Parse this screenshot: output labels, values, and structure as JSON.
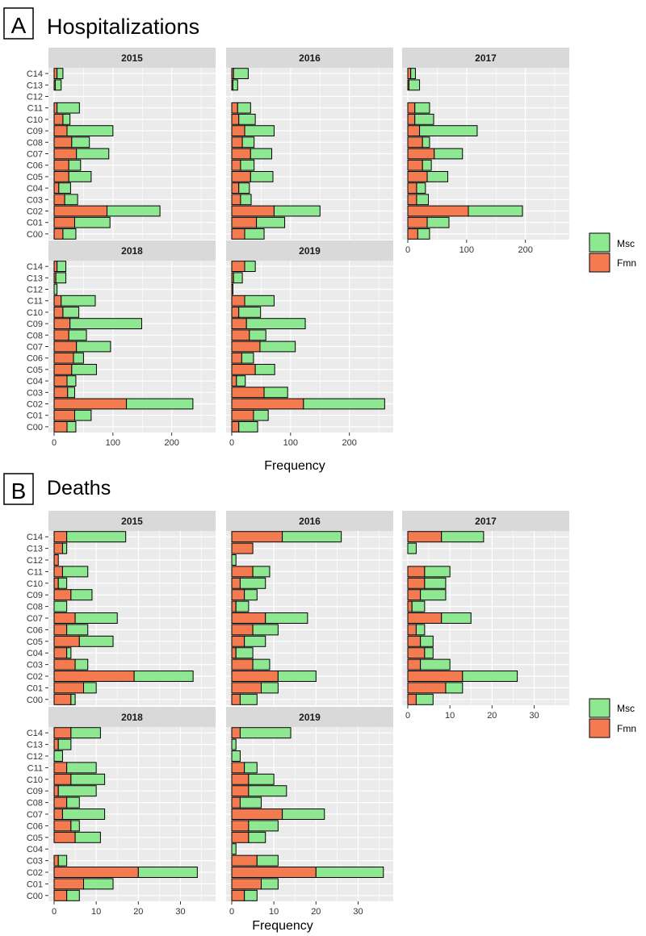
{
  "colors": {
    "fmn": "#F47B50",
    "msc": "#8EE891",
    "panel_bg": "#EBEBEB",
    "strip_bg": "#D9D9D9",
    "grid": "#FFFFFF",
    "outline": "#000000"
  },
  "panels": [
    {
      "letter": "A",
      "title": "Hospitalizations",
      "xlabel": "Frequency",
      "legend": {
        "msc": "Msc",
        "fmn": "Fmn"
      },
      "chart_data": {
        "type": "bar",
        "orientation": "horizontal",
        "stacked": true,
        "categories": [
          "C00",
          "C01",
          "C02",
          "C03",
          "C04",
          "C05",
          "C06",
          "C07",
          "C08",
          "C09",
          "C10",
          "C11",
          "C12",
          "C13",
          "C14"
        ],
        "xlim": [
          0,
          265
        ],
        "xticks": [
          0,
          100,
          200
        ],
        "facets": [
          {
            "year": "2015",
            "fmn": [
              15,
              35,
              90,
              18,
              8,
              25,
              25,
              38,
              30,
              22,
              15,
              5,
              0,
              2,
              5
            ],
            "msc": [
              22,
              60,
              90,
              22,
              20,
              38,
              20,
              55,
              30,
              78,
              12,
              38,
              0,
              10,
              10
            ]
          },
          {
            "year": "2016",
            "fmn": [
              22,
              42,
              72,
              15,
              12,
              32,
              15,
              32,
              18,
              22,
              12,
              10,
              0,
              2,
              3
            ],
            "msc": [
              33,
              48,
              78,
              18,
              18,
              38,
              23,
              36,
              20,
              50,
              28,
              22,
              0,
              8,
              25
            ]
          },
          {
            "year": "2017",
            "fmn": [
              17,
              33,
              103,
              15,
              15,
              33,
              25,
              45,
              25,
              20,
              12,
              12,
              0,
              2,
              5
            ],
            "msc": [
              20,
              37,
              92,
              20,
              15,
              35,
              15,
              48,
              12,
              98,
              32,
              25,
              0,
              18,
              8
            ]
          },
          {
            "year": "2018",
            "fmn": [
              22,
              35,
              123,
              23,
              22,
              30,
              33,
              38,
              25,
              27,
              15,
              12,
              0,
              3,
              5
            ],
            "msc": [
              15,
              28,
              113,
              12,
              15,
              42,
              17,
              58,
              30,
              122,
              27,
              58,
              5,
              17,
              15
            ]
          },
          {
            "year": "2019",
            "fmn": [
              12,
              37,
              122,
              55,
              8,
              40,
              17,
              48,
              30,
              25,
              12,
              22,
              2,
              3,
              22
            ],
            "msc": [
              32,
              25,
              138,
              40,
              15,
              33,
              20,
              60,
              28,
              100,
              37,
              50,
              0,
              15,
              18
            ]
          }
        ]
      }
    },
    {
      "letter": "B",
      "title": "Deaths",
      "xlabel": "Frequency",
      "legend": {
        "msc": "Msc",
        "fmn": "Fmn"
      },
      "chart_data": {
        "type": "bar",
        "orientation": "horizontal",
        "stacked": true,
        "categories": [
          "C00",
          "C01",
          "C02",
          "C03",
          "C04",
          "C05",
          "C06",
          "C07",
          "C08",
          "C09",
          "C10",
          "C11",
          "C12",
          "C13",
          "C14"
        ],
        "xlim": [
          0,
          37
        ],
        "xticks": [
          0,
          10,
          20,
          30
        ],
        "facets": [
          {
            "year": "2015",
            "fmn": [
              4,
              7,
              19,
              5,
              3,
              6,
              3,
              5,
              0,
              4,
              1,
              2,
              1,
              2,
              3
            ],
            "msc": [
              1,
              3,
              14,
              3,
              1,
              8,
              5,
              10,
              3,
              5,
              2,
              6,
              0,
              1,
              14
            ]
          },
          {
            "year": "2016",
            "fmn": [
              2,
              7,
              11,
              5,
              1,
              3,
              5,
              8,
              1,
              3,
              2,
              5,
              0,
              5,
              12
            ],
            "msc": [
              4,
              4,
              9,
              4,
              4,
              5,
              6,
              10,
              3,
              3,
              6,
              4,
              1,
              0,
              14
            ]
          },
          {
            "year": "2017",
            "fmn": [
              2,
              9,
              13,
              3,
              4,
              3,
              2,
              8,
              1,
              3,
              4,
              4,
              0,
              0,
              8
            ],
            "msc": [
              4,
              4,
              13,
              7,
              2,
              3,
              2,
              7,
              3,
              6,
              5,
              6,
              0,
              2,
              10
            ]
          },
          {
            "year": "2018",
            "fmn": [
              3,
              7,
              20,
              1,
              0,
              5,
              4,
              2,
              3,
              1,
              4,
              3,
              0,
              1,
              4
            ],
            "msc": [
              3,
              7,
              14,
              2,
              0,
              6,
              2,
              10,
              3,
              9,
              8,
              7,
              2,
              3,
              7
            ]
          },
          {
            "year": "2019",
            "fmn": [
              3,
              7,
              20,
              6,
              0,
              4,
              4,
              12,
              2,
              4,
              4,
              3,
              0,
              0,
              2
            ],
            "msc": [
              3,
              4,
              16,
              5,
              1,
              4,
              7,
              10,
              5,
              9,
              6,
              3,
              2,
              1,
              12
            ]
          }
        ]
      }
    }
  ]
}
